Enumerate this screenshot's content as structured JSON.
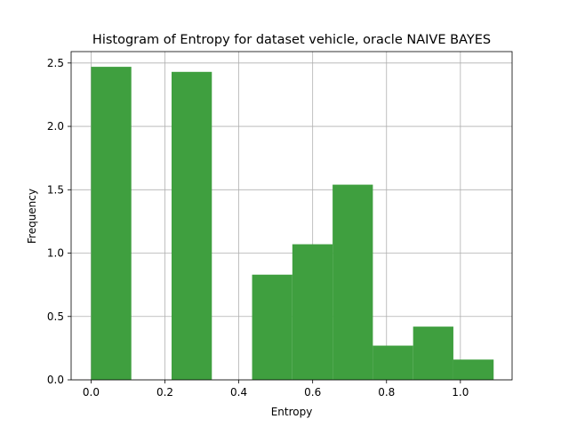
{
  "chart_data": {
    "type": "bar",
    "title": "Histogram of Entropy for dataset vehicle, oracle NAIVE BAYES",
    "xlabel": "Entropy",
    "ylabel": "Frequency",
    "xlim": [
      -0.054,
      1.14
    ],
    "ylim": [
      0,
      2.59
    ],
    "xticks": [
      0.0,
      0.2,
      0.4,
      0.6,
      0.8,
      1.0
    ],
    "xtick_labels": [
      "0.0",
      "0.2",
      "0.4",
      "0.6",
      "0.8",
      "1.0"
    ],
    "yticks": [
      0.0,
      0.5,
      1.0,
      1.5,
      2.0,
      2.5
    ],
    "ytick_labels": [
      "0.0",
      "0.5",
      "1.0",
      "1.5",
      "2.0",
      "2.5"
    ],
    "grid": true,
    "bar_color": "#3f9f3f",
    "bins": [
      {
        "x0": 0.0,
        "x1": 0.109,
        "value": 2.47
      },
      {
        "x0": 0.109,
        "x1": 0.218,
        "value": 0.0
      },
      {
        "x0": 0.218,
        "x1": 0.327,
        "value": 2.43
      },
      {
        "x0": 0.327,
        "x1": 0.436,
        "value": 0.0
      },
      {
        "x0": 0.436,
        "x1": 0.545,
        "value": 0.83
      },
      {
        "x0": 0.545,
        "x1": 0.654,
        "value": 1.07
      },
      {
        "x0": 0.654,
        "x1": 0.763,
        "value": 1.54
      },
      {
        "x0": 0.763,
        "x1": 0.872,
        "value": 0.27
      },
      {
        "x0": 0.872,
        "x1": 0.981,
        "value": 0.42
      },
      {
        "x0": 0.981,
        "x1": 1.09,
        "value": 0.16
      }
    ]
  }
}
